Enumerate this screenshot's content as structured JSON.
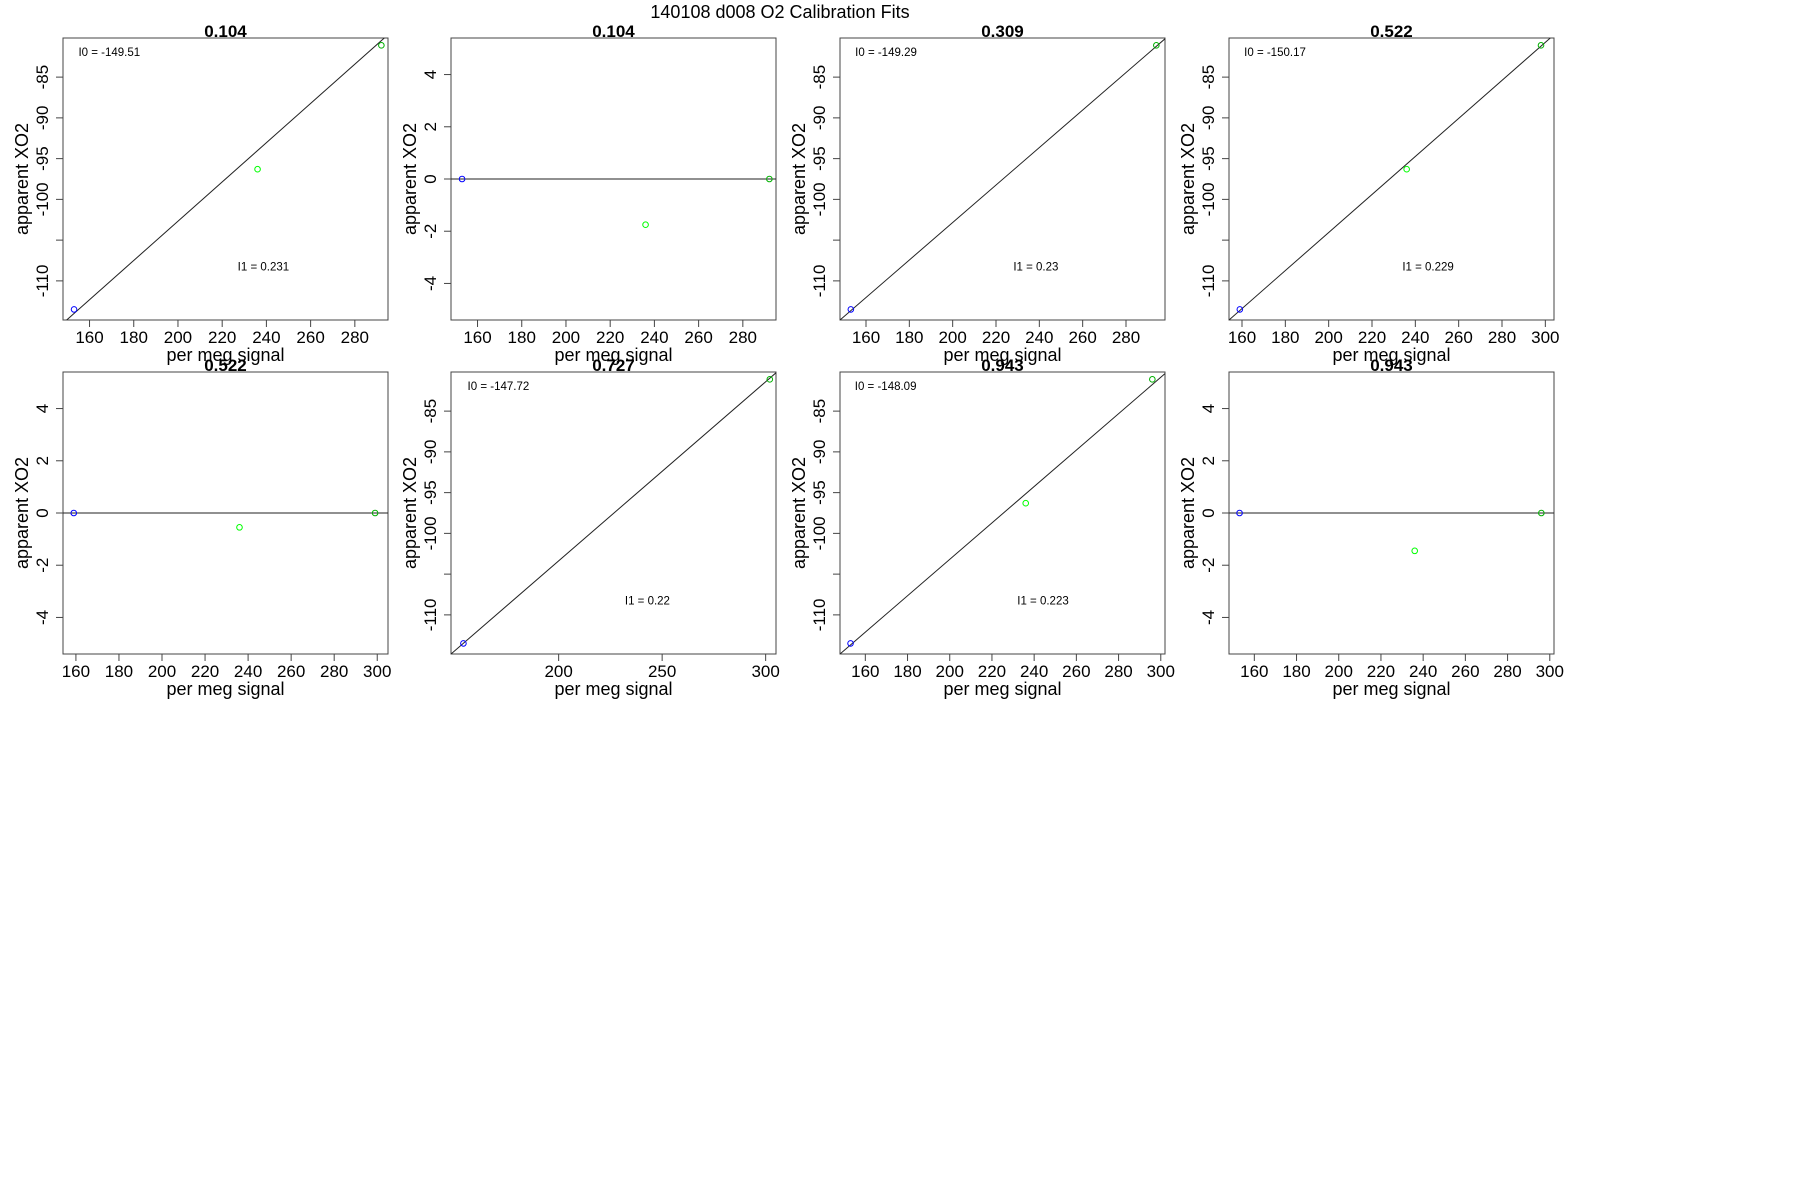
{
  "figure": {
    "title": "140108   d008   O2 Calibration Fits",
    "xlabel": "per meg signal",
    "ylabel": "apparent XO2"
  },
  "colors": {
    "low_point": "#0000ff",
    "mid_point": "#00ff00",
    "high_point": "#00b000",
    "fit_line": "#222222",
    "frame": "#444444"
  },
  "chart_data": [
    {
      "type": "scatter",
      "title": "0.104",
      "xlabel": "per meg signal",
      "ylabel": "apparent XO2",
      "xlim": [
        148,
        295
      ],
      "ylim": [
        -114.8,
        -80.2
      ],
      "xticks": [
        160,
        180,
        200,
        220,
        240,
        260,
        280
      ],
      "yticks": [
        -110,
        -105,
        -100,
        -95,
        -90,
        -85
      ],
      "ytick_labels": [
        "-110",
        "",
        "-100",
        "-95",
        "-90",
        "-85"
      ],
      "points": [
        {
          "x": 153,
          "y": -113.5,
          "color": "#0000ff"
        },
        {
          "x": 236,
          "y": -96.3,
          "color": "#00ff00"
        },
        {
          "x": 292,
          "y": -81.1,
          "color": "#00b000"
        }
      ],
      "fit": {
        "type": "line",
        "x": [
          148,
          295
        ],
        "y": [
          -115.2,
          -79.8
        ]
      },
      "annotations": [
        {
          "text": "I0 =  -149.51",
          "x": 155,
          "y": -82.4
        },
        {
          "text": "I1 =  0.231",
          "x": 227,
          "y": -108.7
        }
      ]
    },
    {
      "type": "scatter",
      "title": "0.104",
      "xlabel": "per meg signal",
      "ylabel": "apparent XO2",
      "xlim": [
        148,
        295
      ],
      "ylim": [
        -5.4,
        5.4
      ],
      "xticks": [
        160,
        180,
        200,
        220,
        240,
        260,
        280
      ],
      "yticks": [
        -4,
        -2,
        0,
        2,
        4
      ],
      "points": [
        {
          "x": 153,
          "y": 0,
          "color": "#0000ff"
        },
        {
          "x": 236,
          "y": -1.75,
          "color": "#00ff00"
        },
        {
          "x": 292,
          "y": 0,
          "color": "#00b000"
        }
      ],
      "fit": {
        "type": "hline",
        "y": 0
      },
      "annotations": []
    },
    {
      "type": "scatter",
      "title": "0.309",
      "xlabel": "per meg signal",
      "ylabel": "apparent XO2",
      "xlim": [
        148,
        298
      ],
      "ylim": [
        -114.8,
        -80.2
      ],
      "xticks": [
        160,
        180,
        200,
        220,
        240,
        260,
        280
      ],
      "yticks": [
        -110,
        -105,
        -100,
        -95,
        -90,
        -85
      ],
      "ytick_labels": [
        "-110",
        "",
        "-100",
        "-95",
        "-90",
        "-85"
      ],
      "points": [
        {
          "x": 153,
          "y": -113.5,
          "color": "#0000ff"
        },
        {
          "x": 294,
          "y": -81.1,
          "color": "#00b000"
        }
      ],
      "fit": {
        "type": "line",
        "x": [
          148,
          298
        ],
        "y": [
          -114.8,
          -80.3
        ]
      },
      "annotations": [
        {
          "text": "I0 =  -149.29",
          "x": 155,
          "y": -82.4
        },
        {
          "text": "I1 =  0.23",
          "x": 228,
          "y": -108.7
        }
      ]
    },
    {
      "type": "scatter",
      "title": "0.522",
      "xlabel": "per meg signal",
      "ylabel": "apparent XO2",
      "xlim": [
        154,
        304
      ],
      "ylim": [
        -114.8,
        -80.2
      ],
      "xticks": [
        160,
        180,
        200,
        220,
        240,
        260,
        280,
        300
      ],
      "yticks": [
        -110,
        -105,
        -100,
        -95,
        -90,
        -85
      ],
      "ytick_labels": [
        "-110",
        "",
        "-100",
        "-95",
        "-90",
        "-85"
      ],
      "points": [
        {
          "x": 159,
          "y": -113.5,
          "color": "#0000ff"
        },
        {
          "x": 236,
          "y": -96.3,
          "color": "#00ff00"
        },
        {
          "x": 298,
          "y": -81.1,
          "color": "#00b000"
        }
      ],
      "fit": {
        "type": "line",
        "x": [
          154,
          304
        ],
        "y": [
          -114.8,
          -79.8
        ]
      },
      "annotations": [
        {
          "text": "I0 =  -150.17",
          "x": 161,
          "y": -82.4
        },
        {
          "text": "I1 =  0.229",
          "x": 234,
          "y": -108.7
        }
      ]
    },
    {
      "type": "scatter",
      "title": "0.522",
      "xlabel": "per meg signal",
      "ylabel": "apparent XO2",
      "xlim": [
        154,
        305
      ],
      "ylim": [
        -5.4,
        5.4
      ],
      "xticks": [
        160,
        180,
        200,
        220,
        240,
        260,
        280,
        300
      ],
      "yticks": [
        -4,
        -2,
        0,
        2,
        4
      ],
      "points": [
        {
          "x": 159,
          "y": 0,
          "color": "#0000ff"
        },
        {
          "x": 236,
          "y": -0.55,
          "color": "#00ff00"
        },
        {
          "x": 299,
          "y": 0,
          "color": "#00b000"
        }
      ],
      "fit": {
        "type": "hline",
        "y": 0
      },
      "annotations": []
    },
    {
      "type": "scatter",
      "title": "0.727",
      "xlabel": "per meg signal",
      "ylabel": "apparent XO2",
      "xlim": [
        148,
        305
      ],
      "ylim": [
        -114.8,
        -80.2
      ],
      "xticks": [
        200,
        250,
        300
      ],
      "yticks": [
        -110,
        -105,
        -100,
        -95,
        -90,
        -85
      ],
      "ytick_labels": [
        "-110",
        "",
        "-100",
        "-95",
        "-90",
        "-85"
      ],
      "points": [
        {
          "x": 154,
          "y": -113.5,
          "color": "#0000ff"
        },
        {
          "x": 302,
          "y": -81.1,
          "color": "#00b000"
        }
      ],
      "fit": {
        "type": "line",
        "x": [
          148,
          305
        ],
        "y": [
          -114.8,
          -80.3
        ]
      },
      "annotations": [
        {
          "text": "I0 =  -147.72",
          "x": 156,
          "y": -82.4
        },
        {
          "text": "I1 =  0.22",
          "x": 232,
          "y": -108.7
        }
      ]
    },
    {
      "type": "scatter",
      "title": "0.943",
      "xlabel": "per meg signal",
      "ylabel": "apparent XO2",
      "xlim": [
        148,
        302
      ],
      "ylim": [
        -114.8,
        -80.2
      ],
      "xticks": [
        160,
        180,
        200,
        220,
        240,
        260,
        280,
        300
      ],
      "yticks": [
        -110,
        -105,
        -100,
        -95,
        -90,
        -85
      ],
      "ytick_labels": [
        "-110",
        "",
        "-100",
        "-95",
        "-90",
        "-85"
      ],
      "points": [
        {
          "x": 153,
          "y": -113.5,
          "color": "#0000ff"
        },
        {
          "x": 236,
          "y": -96.3,
          "color": "#00ff00"
        },
        {
          "x": 296,
          "y": -81.1,
          "color": "#00b000"
        }
      ],
      "fit": {
        "type": "line",
        "x": [
          148,
          302
        ],
        "y": [
          -114.8,
          -80.4
        ]
      },
      "annotations": [
        {
          "text": "I0 =  -148.09",
          "x": 155,
          "y": -82.4
        },
        {
          "text": "I1 =  0.223",
          "x": 232,
          "y": -108.7
        }
      ]
    },
    {
      "type": "scatter",
      "title": "0.943",
      "xlabel": "per meg signal",
      "ylabel": "apparent XO2",
      "xlim": [
        148,
        302
      ],
      "ylim": [
        -5.4,
        5.4
      ],
      "xticks": [
        160,
        180,
        200,
        220,
        240,
        260,
        280,
        300
      ],
      "yticks": [
        -4,
        -2,
        0,
        2,
        4
      ],
      "points": [
        {
          "x": 153,
          "y": 0,
          "color": "#0000ff"
        },
        {
          "x": 236,
          "y": -1.45,
          "color": "#00ff00"
        },
        {
          "x": 296,
          "y": 0,
          "color": "#00b000"
        }
      ],
      "fit": {
        "type": "hline",
        "y": 0
      },
      "annotations": []
    }
  ]
}
